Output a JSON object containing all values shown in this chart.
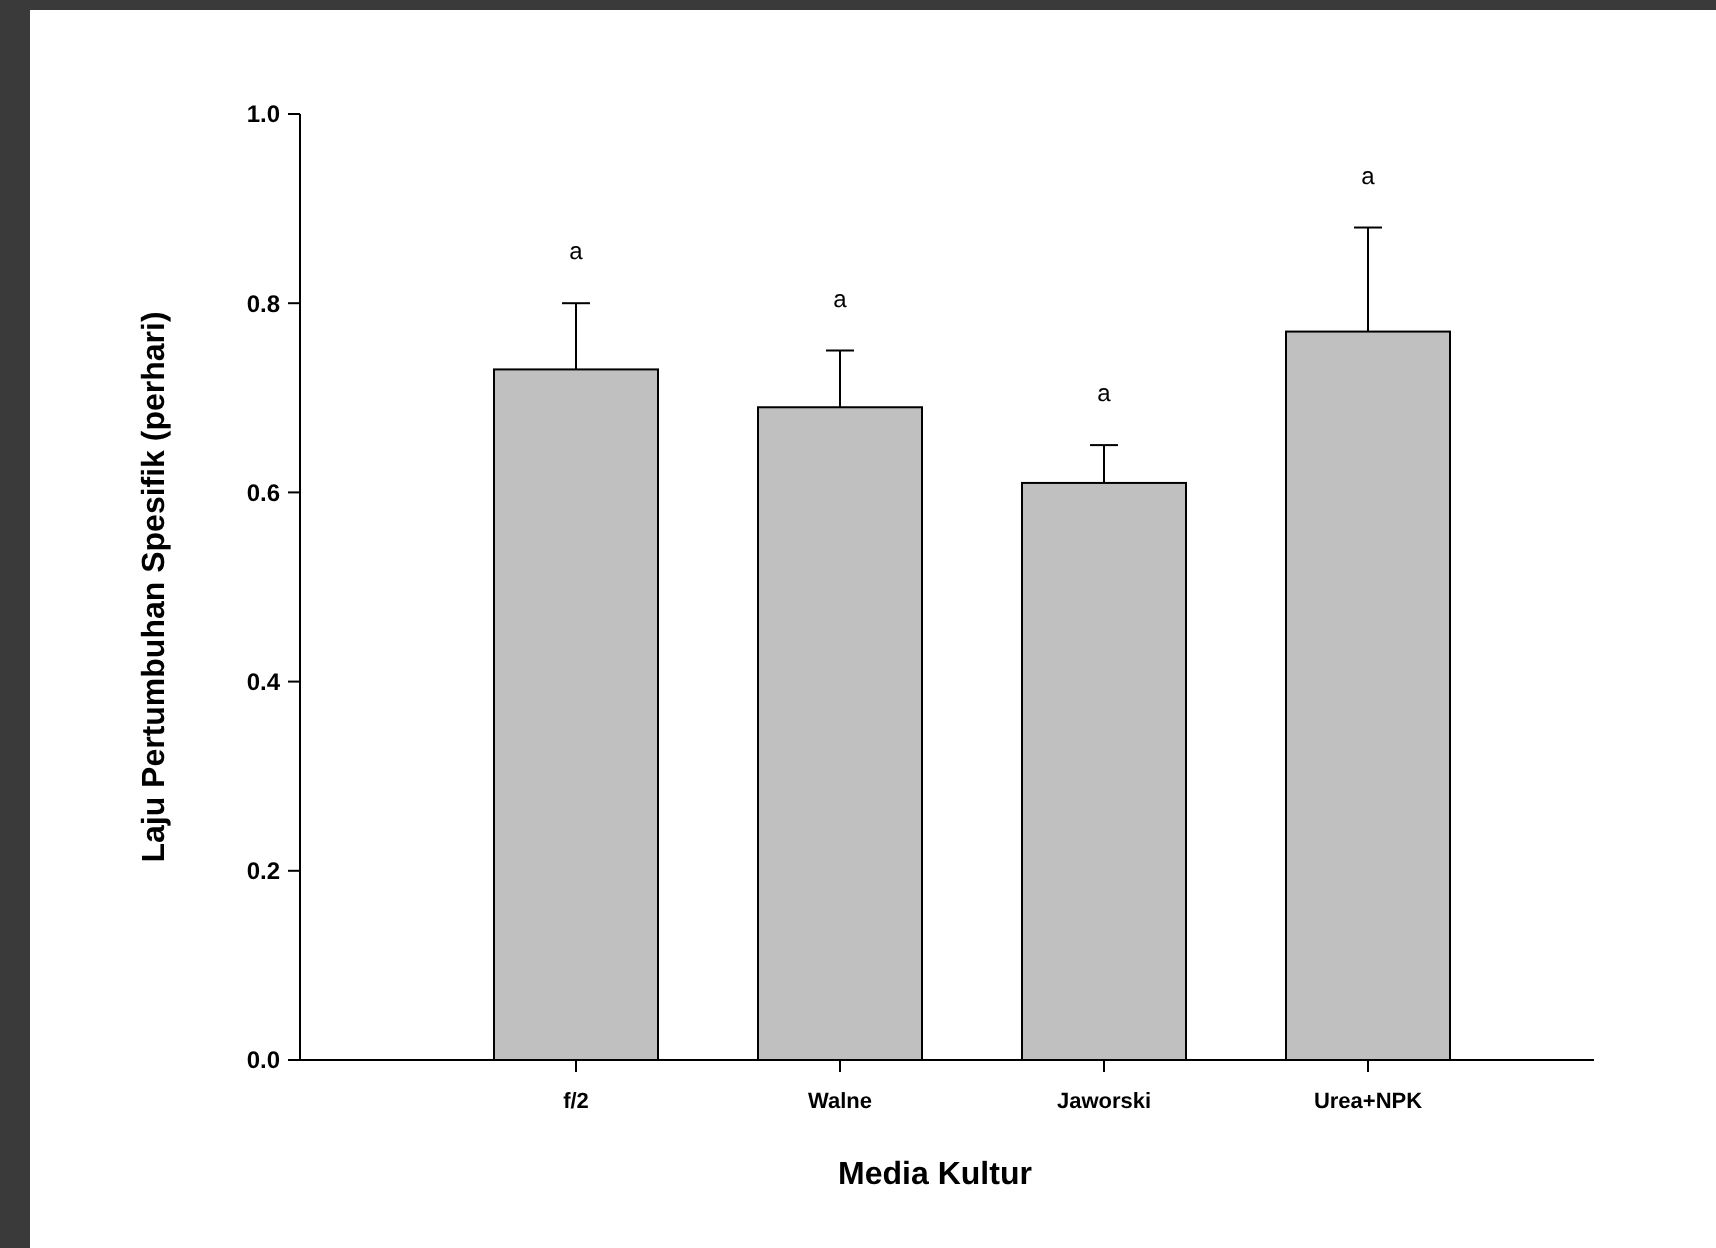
{
  "chart_data": {
    "type": "bar",
    "xlabel": "Media Kultur",
    "ylabel": "Laju Pertumbuhan Spesifik (perhari)",
    "categories": [
      "f/2",
      "Walne",
      "Jaworski",
      "Urea+NPK"
    ],
    "values": [
      0.73,
      0.69,
      0.61,
      0.77
    ],
    "errors": [
      [
        0.73,
        0.8
      ],
      [
        0.69,
        0.75
      ],
      [
        0.61,
        0.65
      ],
      [
        0.77,
        0.88
      ]
    ],
    "color": "#c0c0c0",
    "ylim": [
      0,
      1
    ],
    "yticks": [
      {
        "value": 0,
        "label": "0.0"
      },
      {
        "value": 0.2,
        "label": "0.2"
      },
      {
        "value": 0.4,
        "label": "0.4"
      },
      {
        "value": 0.6,
        "label": "0.6"
      },
      {
        "value": 0.8,
        "label": "0.8"
      },
      {
        "value": 1,
        "label": "1.0"
      }
    ],
    "annotations": [
      {
        "text": "a",
        "x": "f/2",
        "y": 0.8
      },
      {
        "text": "a",
        "x": "Walne",
        "y": 0.75
      },
      {
        "text": "a",
        "x": "Jaworski",
        "y": 0.65
      },
      {
        "text": "a",
        "x": "Urea+NPK",
        "y": 0.88
      }
    ]
  }
}
